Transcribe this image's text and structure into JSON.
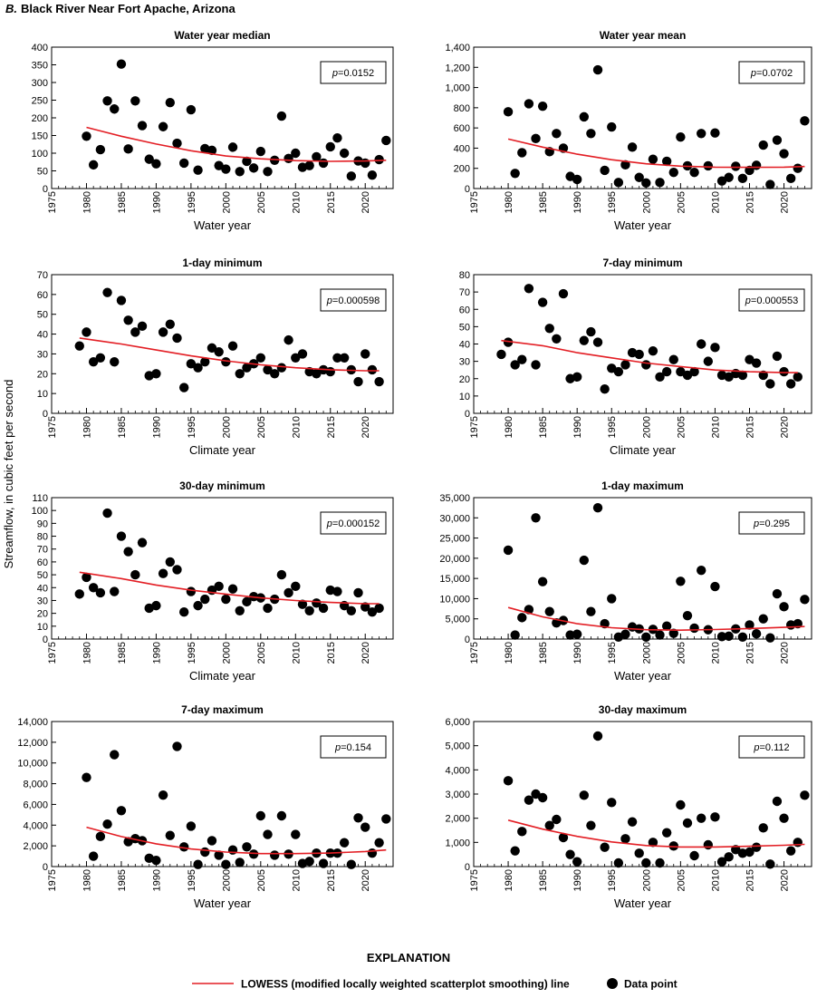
{
  "figure": {
    "panel_letter": "B.",
    "panel_title": "Black River Near Fort Apache, Arizona",
    "shared_ylabel": "Streamflow, in cubic feet per second",
    "explanation_title": "EXPLANATION",
    "legend_line_label": "LOWESS (modified locally weighted scatterplot smoothing) line",
    "legend_point_label": "Data point"
  },
  "colors": {
    "lowess_line": "#e31e24",
    "points": "#000000",
    "axes": "#000000"
  },
  "x_ticks": [
    "1975",
    "1980",
    "1985",
    "1990",
    "1995",
    "2000",
    "2005",
    "2010",
    "2015",
    "2020"
  ],
  "chart_data": [
    {
      "type": "scatter",
      "title": "Water year median",
      "xlabel": "Water year",
      "p_label": "p",
      "p_value": "=0.0152",
      "xlim": [
        1975,
        2024
      ],
      "ylim": [
        0,
        400
      ],
      "yticks": [
        0,
        50,
        100,
        150,
        200,
        250,
        300,
        350,
        400
      ],
      "ytick_labels": [
        "0",
        "50",
        "100",
        "150",
        "200",
        "250",
        "300",
        "350",
        "400"
      ],
      "x": [
        1980,
        1981,
        1982,
        1983,
        1984,
        1985,
        1986,
        1987,
        1988,
        1989,
        1990,
        1991,
        1992,
        1993,
        1994,
        1995,
        1996,
        1997,
        1998,
        1999,
        2000,
        2001,
        2002,
        2003,
        2004,
        2005,
        2006,
        2007,
        2008,
        2009,
        2010,
        2011,
        2012,
        2013,
        2014,
        2015,
        2016,
        2017,
        2018,
        2019,
        2020,
        2021,
        2022,
        2023
      ],
      "y": [
        148,
        67,
        110,
        248,
        225,
        352,
        112,
        248,
        178,
        83,
        70,
        175,
        243,
        128,
        72,
        223,
        52,
        113,
        108,
        65,
        55,
        117,
        48,
        77,
        58,
        105,
        48,
        80,
        205,
        85,
        100,
        60,
        65,
        90,
        72,
        118,
        143,
        100,
        35,
        78,
        72,
        38,
        82,
        136
      ],
      "lowess": {
        "x": [
          1980,
          1985,
          1990,
          1995,
          2000,
          2005,
          2010,
          2015,
          2020,
          2023
        ],
        "y": [
          173,
          148,
          126,
          107,
          92,
          84,
          79,
          77,
          78,
          80
        ]
      }
    },
    {
      "type": "scatter",
      "title": "Water year mean",
      "xlabel": "Water year",
      "p_label": "p",
      "p_value": "=0.0702",
      "xlim": [
        1975,
        2024
      ],
      "ylim": [
        0,
        1400
      ],
      "yticks": [
        0,
        200,
        400,
        600,
        800,
        1000,
        1200,
        1400
      ],
      "ytick_labels": [
        "0",
        "200",
        "400",
        "600",
        "800",
        "1,000",
        "1,200",
        "1,400"
      ],
      "x": [
        1980,
        1981,
        1982,
        1983,
        1984,
        1985,
        1986,
        1987,
        1988,
        1989,
        1990,
        1991,
        1992,
        1993,
        1994,
        1995,
        1996,
        1997,
        1998,
        1999,
        2000,
        2001,
        2002,
        2003,
        2004,
        2005,
        2006,
        2007,
        2008,
        2009,
        2010,
        2011,
        2012,
        2013,
        2014,
        2015,
        2016,
        2017,
        2018,
        2019,
        2020,
        2021,
        2022,
        2023
      ],
      "y": [
        760,
        150,
        355,
        840,
        495,
        815,
        365,
        545,
        400,
        120,
        90,
        710,
        545,
        1175,
        180,
        610,
        60,
        235,
        410,
        110,
        55,
        290,
        60,
        270,
        160,
        510,
        225,
        160,
        545,
        225,
        550,
        75,
        110,
        220,
        100,
        180,
        230,
        430,
        40,
        480,
        345,
        100,
        200,
        670
      ],
      "lowess": {
        "x": [
          1980,
          1985,
          1990,
          1995,
          2000,
          2005,
          2010,
          2015,
          2020,
          2023
        ],
        "y": [
          490,
          410,
          340,
          285,
          245,
          222,
          212,
          210,
          212,
          218
        ]
      }
    },
    {
      "type": "scatter",
      "title": "1-day minimum",
      "xlabel": "Climate year",
      "p_label": "p",
      "p_value": "=0.000598",
      "xlim": [
        1975,
        2024
      ],
      "ylim": [
        0,
        70
      ],
      "yticks": [
        0,
        10,
        20,
        30,
        40,
        50,
        60,
        70
      ],
      "ytick_labels": [
        "0",
        "10",
        "20",
        "30",
        "40",
        "50",
        "60",
        "70"
      ],
      "x": [
        1979,
        1980,
        1981,
        1982,
        1983,
        1984,
        1985,
        1986,
        1987,
        1988,
        1989,
        1990,
        1991,
        1992,
        1993,
        1994,
        1995,
        1996,
        1997,
        1998,
        1999,
        2000,
        2001,
        2002,
        2003,
        2004,
        2005,
        2006,
        2007,
        2008,
        2009,
        2010,
        2011,
        2012,
        2013,
        2014,
        2015,
        2016,
        2017,
        2018,
        2019,
        2020,
        2021,
        2022
      ],
      "y": [
        34,
        41,
        26,
        28,
        61,
        26,
        57,
        47,
        41,
        44,
        19,
        20,
        41,
        45,
        38,
        13,
        25,
        23,
        26,
        33,
        31,
        26,
        34,
        20,
        23,
        25,
        28,
        22,
        20,
        23,
        37,
        28,
        30,
        21,
        20,
        22,
        21,
        28,
        28,
        22,
        16,
        30,
        22,
        16
      ],
      "lowess": {
        "x": [
          1979,
          1985,
          1990,
          1995,
          2000,
          2005,
          2010,
          2015,
          2020,
          2022
        ],
        "y": [
          38,
          35,
          32,
          29,
          26.5,
          24.5,
          23,
          22,
          21.5,
          21.5
        ]
      }
    },
    {
      "type": "scatter",
      "title": "7-day minimum",
      "xlabel": "Climate year",
      "p_label": "p",
      "p_value": "=0.000553",
      "xlim": [
        1975,
        2024
      ],
      "ylim": [
        0,
        80
      ],
      "yticks": [
        0,
        10,
        20,
        30,
        40,
        50,
        60,
        70,
        80
      ],
      "ytick_labels": [
        "0",
        "10",
        "20",
        "30",
        "40",
        "50",
        "60",
        "70",
        "80"
      ],
      "x": [
        1979,
        1980,
        1981,
        1982,
        1983,
        1984,
        1985,
        1986,
        1987,
        1988,
        1989,
        1990,
        1991,
        1992,
        1993,
        1994,
        1995,
        1996,
        1997,
        1998,
        1999,
        2000,
        2001,
        2002,
        2003,
        2004,
        2005,
        2006,
        2007,
        2008,
        2009,
        2010,
        2011,
        2012,
        2013,
        2014,
        2015,
        2016,
        2017,
        2018,
        2019,
        2020,
        2021,
        2022
      ],
      "y": [
        34,
        41,
        28,
        31,
        72,
        28,
        64,
        49,
        43,
        69,
        20,
        21,
        42,
        47,
        41,
        14,
        26,
        24,
        28,
        35,
        34,
        28,
        36,
        21,
        24,
        31,
        24,
        22,
        24,
        40,
        30,
        38,
        22,
        21,
        23,
        22,
        31,
        29,
        22,
        17,
        33,
        24,
        17,
        21
      ],
      "lowess": {
        "x": [
          1979,
          1985,
          1990,
          1995,
          2000,
          2005,
          2010,
          2015,
          2020,
          2022
        ],
        "y": [
          42,
          39,
          35,
          32,
          29,
          27,
          25,
          24,
          23.5,
          23.5
        ]
      }
    },
    {
      "type": "scatter",
      "title": "30-day minimum",
      "xlabel": "Climate year",
      "p_label": "p",
      "p_value": "=0.000152",
      "xlim": [
        1975,
        2024
      ],
      "ylim": [
        0,
        110
      ],
      "yticks": [
        0,
        10,
        20,
        30,
        40,
        50,
        60,
        70,
        80,
        90,
        100,
        110
      ],
      "ytick_labels": [
        "0",
        "10",
        "20",
        "30",
        "40",
        "50",
        "60",
        "70",
        "80",
        "90",
        "100",
        "110"
      ],
      "x": [
        1979,
        1980,
        1981,
        1982,
        1983,
        1984,
        1985,
        1986,
        1987,
        1988,
        1989,
        1990,
        1991,
        1992,
        1993,
        1994,
        1995,
        1996,
        1997,
        1998,
        1999,
        2000,
        2001,
        2002,
        2003,
        2004,
        2005,
        2006,
        2007,
        2008,
        2009,
        2010,
        2011,
        2012,
        2013,
        2014,
        2015,
        2016,
        2017,
        2018,
        2019,
        2020,
        2021,
        2022
      ],
      "y": [
        35,
        48,
        40,
        36,
        98,
        37,
        80,
        68,
        50,
        75,
        24,
        26,
        51,
        60,
        54,
        21,
        37,
        26,
        31,
        38,
        41,
        31,
        39,
        22,
        29,
        33,
        32,
        24,
        31,
        50,
        36,
        41,
        27,
        22,
        28,
        24,
        38,
        37,
        26,
        22,
        36,
        25,
        21,
        24
      ],
      "lowess": {
        "x": [
          1979,
          1985,
          1990,
          1995,
          2000,
          2005,
          2010,
          2015,
          2020,
          2022
        ],
        "y": [
          52,
          47,
          42,
          38,
          35,
          32,
          30,
          28.5,
          27.5,
          27.5
        ]
      }
    },
    {
      "type": "scatter",
      "title": "1-day maximum",
      "xlabel": "Water year",
      "p_label": "p",
      "p_value": "=0.295",
      "xlim": [
        1975,
        2024
      ],
      "ylim": [
        0,
        35000
      ],
      "yticks": [
        0,
        5000,
        10000,
        15000,
        20000,
        25000,
        30000,
        35000
      ],
      "ytick_labels": [
        "0",
        "5,000",
        "10,000",
        "15,000",
        "20,000",
        "25,000",
        "30,000",
        "35,000"
      ],
      "x": [
        1980,
        1981,
        1982,
        1983,
        1984,
        1985,
        1986,
        1987,
        1988,
        1989,
        1990,
        1991,
        1992,
        1993,
        1994,
        1995,
        1996,
        1997,
        1998,
        1999,
        2000,
        2001,
        2002,
        2003,
        2004,
        2005,
        2006,
        2007,
        2008,
        2009,
        2010,
        2011,
        2012,
        2013,
        2014,
        2015,
        2016,
        2017,
        2018,
        2019,
        2020,
        2021,
        2022,
        2023
      ],
      "y": [
        22000,
        1000,
        5300,
        7300,
        30000,
        14200,
        6800,
        4000,
        4600,
        1000,
        1200,
        19500,
        6800,
        32500,
        3800,
        10000,
        500,
        1200,
        3000,
        2500,
        500,
        2400,
        1000,
        3200,
        1400,
        14300,
        5800,
        2700,
        17000,
        2300,
        13000,
        600,
        700,
        2500,
        500,
        3500,
        1300,
        5000,
        300,
        11200,
        8000,
        3500,
        3800,
        9800
      ],
      "lowess": {
        "x": [
          1980,
          1985,
          1990,
          1995,
          2000,
          2005,
          2010,
          2015,
          2020,
          2023
        ],
        "y": [
          7800,
          5500,
          3800,
          2800,
          2300,
          2200,
          2350,
          2600,
          2900,
          3100
        ]
      }
    },
    {
      "type": "scatter",
      "title": "7-day maximum",
      "xlabel": "Water year",
      "p_label": "p",
      "p_value": "=0.154",
      "xlim": [
        1975,
        2024
      ],
      "ylim": [
        0,
        14000
      ],
      "yticks": [
        0,
        2000,
        4000,
        6000,
        8000,
        10000,
        12000,
        14000
      ],
      "ytick_labels": [
        "0",
        "2,000",
        "4,000",
        "6,000",
        "8,000",
        "10,000",
        "12,000",
        "14,000"
      ],
      "x": [
        1980,
        1981,
        1982,
        1983,
        1984,
        1985,
        1986,
        1987,
        1988,
        1989,
        1990,
        1991,
        1992,
        1993,
        1994,
        1995,
        1996,
        1997,
        1998,
        1999,
        2000,
        2001,
        2002,
        2003,
        2004,
        2005,
        2006,
        2007,
        2008,
        2009,
        2010,
        2011,
        2012,
        2013,
        2014,
        2015,
        2016,
        2017,
        2018,
        2019,
        2020,
        2021,
        2022,
        2023
      ],
      "y": [
        8600,
        1000,
        2900,
        4100,
        10800,
        5400,
        2400,
        2700,
        2500,
        800,
        600,
        6900,
        3000,
        11600,
        1900,
        3900,
        200,
        1400,
        2500,
        1100,
        200,
        1600,
        400,
        1900,
        1200,
        4900,
        3100,
        1100,
        4900,
        1200,
        3100,
        300,
        500,
        1300,
        300,
        1300,
        1300,
        2300,
        200,
        4700,
        3800,
        1300,
        2300,
        4600
      ],
      "lowess": {
        "x": [
          1980,
          1985,
          1990,
          1995,
          2000,
          2005,
          2010,
          2015,
          2020,
          2023
        ],
        "y": [
          3800,
          2900,
          2200,
          1700,
          1400,
          1250,
          1250,
          1300,
          1450,
          1600
        ]
      }
    },
    {
      "type": "scatter",
      "title": "30-day maximum",
      "xlabel": "Water year",
      "p_label": "p",
      "p_value": "=0.112",
      "xlim": [
        1975,
        2024
      ],
      "ylim": [
        0,
        6000
      ],
      "yticks": [
        0,
        1000,
        2000,
        3000,
        4000,
        5000,
        6000
      ],
      "ytick_labels": [
        "0",
        "1,000",
        "2,000",
        "3,000",
        "4,000",
        "5,000",
        "6,000"
      ],
      "x": [
        1980,
        1981,
        1982,
        1983,
        1984,
        1985,
        1986,
        1987,
        1988,
        1989,
        1990,
        1991,
        1992,
        1993,
        1994,
        1995,
        1996,
        1997,
        1998,
        1999,
        2000,
        2001,
        2002,
        2003,
        2004,
        2005,
        2006,
        2007,
        2008,
        2009,
        2010,
        2011,
        2012,
        2013,
        2014,
        2015,
        2016,
        2017,
        2018,
        2019,
        2020,
        2021,
        2022,
        2023
      ],
      "y": [
        3550,
        650,
        1450,
        2750,
        3000,
        2850,
        1700,
        1950,
        1200,
        500,
        200,
        2950,
        1700,
        5400,
        800,
        2650,
        150,
        1150,
        1850,
        550,
        150,
        1000,
        150,
        1400,
        850,
        2550,
        1800,
        450,
        2000,
        900,
        2050,
        200,
        400,
        700,
        550,
        600,
        800,
        1600,
        100,
        2700,
        2000,
        650,
        1000,
        2950
      ],
      "lowess": {
        "x": [
          1980,
          1985,
          1990,
          1995,
          2000,
          2005,
          2010,
          2015,
          2020,
          2023
        ],
        "y": [
          1920,
          1550,
          1250,
          1020,
          870,
          810,
          810,
          840,
          880,
          920
        ]
      }
    }
  ]
}
